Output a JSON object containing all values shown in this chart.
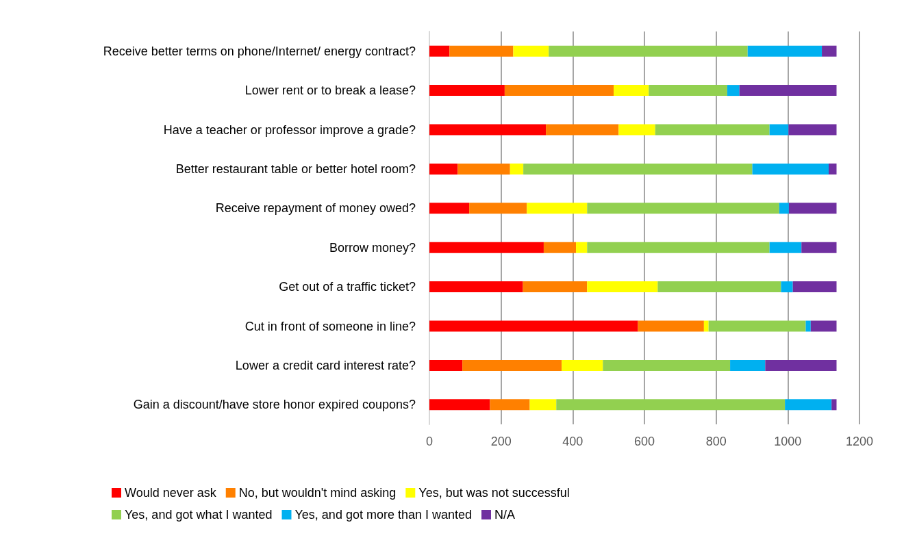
{
  "chart_data": {
    "type": "bar",
    "orientation": "horizontal",
    "stacked": true,
    "categories": [
      "Receive better terms on phone/Internet/ energy contract?",
      "Lower rent or to break a lease?",
      "Have a teacher or professor improve a grade?",
      "Better restaurant table or better hotel room?",
      "Receive repayment of money owed?",
      "Borrow money?",
      "Get out of a traffic ticket?",
      "Cut in front of someone in line?",
      "Lower a credit card interest rate?",
      "Gain a discount/have store honor expired coupons?"
    ],
    "series": [
      {
        "name": "Would never ask",
        "color": "#ff0000",
        "values": [
          56,
          210,
          325,
          79,
          111,
          319,
          261,
          582,
          92,
          169
        ]
      },
      {
        "name": "No, but wouldn't mind asking",
        "color": "#ff8000",
        "values": [
          178,
          304,
          203,
          146,
          161,
          90,
          179,
          184,
          277,
          111
        ]
      },
      {
        "name": "Yes, but was not successful",
        "color": "#ffff00",
        "values": [
          99,
          98,
          102,
          37,
          168,
          31,
          197,
          13,
          115,
          74
        ]
      },
      {
        "name": "Yes, and got what I wanted",
        "color": "#92d050",
        "values": [
          555,
          219,
          319,
          639,
          536,
          509,
          344,
          271,
          355,
          638
        ]
      },
      {
        "name": "Yes, and got more than I wanted",
        "color": "#00b0f0",
        "values": [
          207,
          34,
          53,
          213,
          27,
          89,
          33,
          14,
          98,
          130
        ]
      },
      {
        "name": "N/A",
        "color": "#7030a0",
        "values": [
          41,
          271,
          134,
          22,
          133,
          98,
          122,
          72,
          199,
          14
        ]
      }
    ],
    "xlim": [
      0,
      1200
    ],
    "xticks": [
      0,
      200,
      400,
      600,
      800,
      1000,
      1200
    ],
    "grid": "x",
    "legend": "bottom"
  }
}
